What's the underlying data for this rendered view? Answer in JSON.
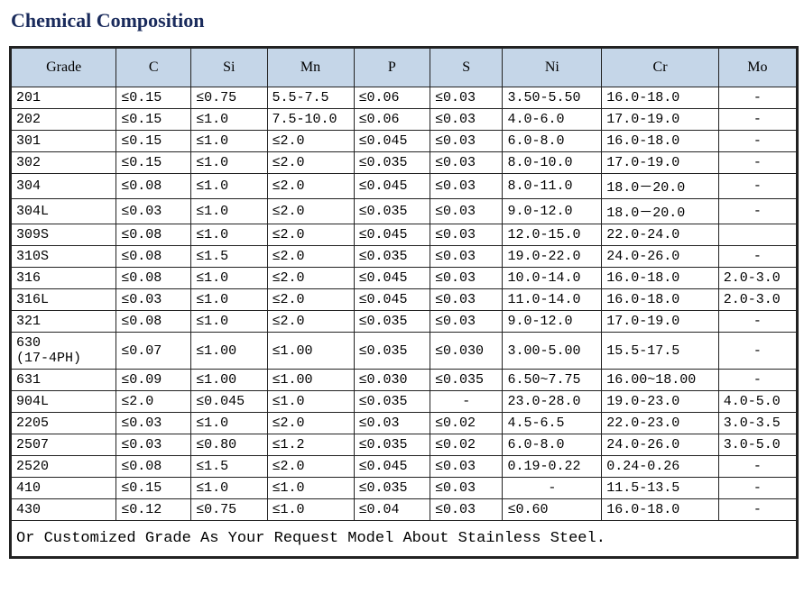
{
  "title": "Chemical Composition",
  "columns": [
    "Grade",
    "C",
    "Si",
    "Mn",
    "P",
    "S",
    "Ni",
    "Cr",
    "Mo"
  ],
  "col_widths": [
    "115px",
    "80px",
    "80px",
    "90px",
    "80px",
    "75px",
    "105px",
    "125px",
    "80px"
  ],
  "rows": [
    [
      "201",
      "≤0.15",
      "≤0.75",
      "5.5-7.5",
      "≤0.06",
      "≤0.03",
      "3.50-5.50",
      "16.0-18.0",
      "-"
    ],
    [
      "202",
      "≤0.15",
      "≤1.0",
      "7.5-10.0",
      "≤0.06",
      "≤0.03",
      "4.0-6.0",
      "17.0-19.0",
      "-"
    ],
    [
      "301",
      "≤0.15",
      "≤1.0",
      "≤2.0",
      "≤0.045",
      "≤0.03",
      "6.0-8.0",
      "16.0-18.0",
      "-"
    ],
    [
      "302",
      "≤0.15",
      "≤1.0",
      "≤2.0",
      "≤0.035",
      "≤0.03",
      "8.0-10.0",
      "17.0-19.0",
      "-"
    ],
    [
      "304",
      "≤0.08",
      "≤1.0",
      "≤2.0",
      "≤0.045",
      "≤0.03",
      "8.0-11.0",
      "18.0－20.0",
      "-"
    ],
    [
      "304L",
      "≤0.03",
      "≤1.0",
      "≤2.0",
      "≤0.035",
      "≤0.03",
      "9.0-12.0",
      "18.0－20.0",
      "-"
    ],
    [
      "309S",
      "≤0.08",
      "≤1.0",
      "≤2.0",
      "≤0.045",
      "≤0.03",
      "12.0-15.0",
      "22.0-24.0",
      ""
    ],
    [
      "310S",
      "≤0.08",
      "≤1.5",
      "≤2.0",
      "≤0.035",
      "≤0.03",
      "19.0-22.0",
      "24.0-26.0",
      "-"
    ],
    [
      "316",
      "≤0.08",
      "≤1.0",
      "≤2.0",
      "≤0.045",
      "≤0.03",
      "10.0-14.0",
      "16.0-18.0",
      "2.0-3.0"
    ],
    [
      "316L",
      "≤0.03",
      "≤1.0",
      "≤2.0",
      "≤0.045",
      "≤0.03",
      "11.0-14.0",
      "16.0-18.0",
      "2.0-3.0"
    ],
    [
      "321",
      "≤0.08",
      "≤1.0",
      "≤2.0",
      "≤0.035",
      "≤0.03",
      "9.0-12.0",
      "17.0-19.0",
      "-"
    ],
    [
      "630\n(17-4PH)",
      "≤0.07",
      "≤1.00",
      "≤1.00",
      "≤0.035",
      "≤0.030",
      "3.00-5.00",
      "15.5-17.5",
      "-"
    ],
    [
      "631",
      "≤0.09",
      "≤1.00",
      "≤1.00",
      "≤0.030",
      "≤0.035",
      "6.50~7.75",
      "16.00~18.00",
      "-"
    ],
    [
      "904L",
      "≤2.0",
      "≤0.045",
      "≤1.0",
      "≤0.035",
      "-",
      "23.0-28.0",
      "19.0-23.0",
      "4.0-5.0"
    ],
    [
      "2205",
      "≤0.03",
      "≤1.0",
      "≤2.0",
      "≤0.03",
      "≤0.02",
      "4.5-6.5",
      "22.0-23.0",
      "3.0-3.5"
    ],
    [
      "2507",
      "≤0.03",
      "≤0.80",
      "≤1.2",
      "≤0.035",
      "≤0.02",
      "6.0-8.0",
      "24.0-26.0",
      "3.0-5.0"
    ],
    [
      "2520",
      "≤0.08",
      "≤1.5",
      "≤2.0",
      "≤0.045",
      "≤0.03",
      "0.19-0.22",
      "0.24-0.26",
      "-"
    ],
    [
      "410",
      "≤0.15",
      "≤1.0",
      "≤1.0",
      "≤0.035",
      "≤0.03",
      "-",
      "11.5-13.5",
      "-"
    ],
    [
      "430",
      "≤0.12",
      "≤0.75",
      "≤1.0",
      "≤0.04",
      "≤0.03",
      "≤0.60",
      "16.0-18.0",
      "-"
    ]
  ],
  "footer": "Or Customized Grade As Your Request Model About Stainless Steel.",
  "colors": {
    "title_color": "#1a2b5c",
    "header_bg": "#c5d6e8",
    "border_color": "#222222",
    "bg_color": "#ffffff"
  },
  "fonts": {
    "title_family": "Georgia, serif",
    "title_size": 22,
    "header_family": "Georgia, serif",
    "header_size": 16,
    "cell_family": "Courier New, monospace",
    "cell_size": 15,
    "footer_size": 17
  }
}
